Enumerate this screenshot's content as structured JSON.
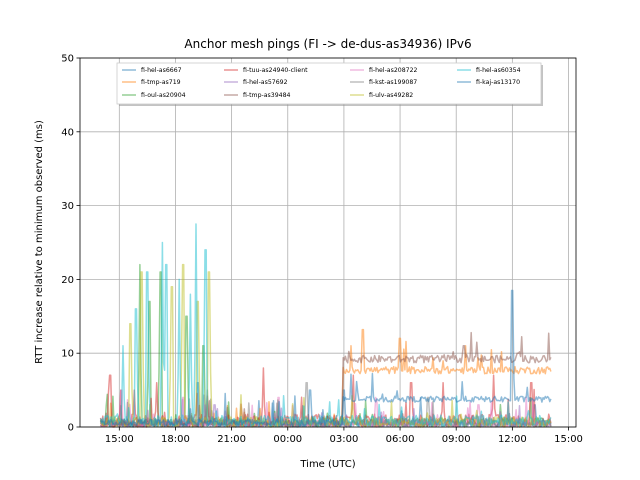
{
  "chart_data": {
    "type": "line",
    "title": "Anchor mesh pings (FI -> de-dus-as34936) IPv6",
    "xlabel": "Time (UTC)",
    "ylabel": "RTT increase relative to minimum observed (ms)",
    "ylim": [
      0,
      50
    ],
    "xlim_hours": [
      12.9,
      39.4
    ],
    "x_ticks": [
      {
        "label": "15:00",
        "hour": 15
      },
      {
        "label": "18:00",
        "hour": 18
      },
      {
        "label": "21:00",
        "hour": 21
      },
      {
        "label": "00:00",
        "hour": 24
      },
      {
        "label": "03:00",
        "hour": 27
      },
      {
        "label": "06:00",
        "hour": 30
      },
      {
        "label": "09:00",
        "hour": 33
      },
      {
        "label": "12:00",
        "hour": 36
      },
      {
        "label": "15:00",
        "hour": 39
      }
    ],
    "y_ticks": [
      0,
      10,
      20,
      30,
      40,
      50
    ],
    "grid": true,
    "legend_position": "top",
    "series": [
      {
        "name": "fi-hel-as6667",
        "color": "#1f77b4",
        "start": 14.0,
        "end": 38.1,
        "level": 0.3,
        "noise": 0.5,
        "spikes": [
          [
            19.2,
            6
          ],
          [
            27.0,
            5
          ],
          [
            31.1,
            4
          ],
          [
            37.2,
            3
          ]
        ]
      },
      {
        "name": "fi-tmp-as719",
        "color": "#ff7f0e",
        "start": 14.0,
        "end": 38.1,
        "level": 0.3,
        "noise": 0.4,
        "plateau": {
          "from": 26.95,
          "level": 7.5,
          "noise": 0.5
        },
        "spikes": [
          [
            28.0,
            13.2
          ],
          [
            30.0,
            12.0
          ],
          [
            33.5,
            11.0
          ]
        ]
      },
      {
        "name": "fi-oul-as20904",
        "color": "#2ca02c",
        "start": 14.0,
        "end": 38.1,
        "level": 0.4,
        "noise": 0.6,
        "spikes": [
          [
            16.1,
            22
          ],
          [
            16.6,
            17
          ],
          [
            17.2,
            21
          ],
          [
            18.6,
            15
          ],
          [
            19.5,
            11
          ]
        ]
      },
      {
        "name": "fi-tuu-as24940-client",
        "color": "#d62728",
        "start": 14.0,
        "end": 38.1,
        "level": 0.5,
        "noise": 0.9,
        "spikes": [
          [
            14.5,
            7
          ],
          [
            15.8,
            5
          ],
          [
            17.0,
            6
          ],
          [
            22.7,
            8
          ],
          [
            27.5,
            7
          ],
          [
            30.6,
            6
          ],
          [
            32.3,
            6
          ],
          [
            35.0,
            7
          ],
          [
            37.0,
            6
          ]
        ]
      },
      {
        "name": "fi-hel-as57692",
        "color": "#9467bd",
        "start": 14.0,
        "end": 38.1,
        "level": 0.2,
        "noise": 0.3,
        "spikes": [
          [
            20.1,
            3
          ],
          [
            29.0,
            2
          ]
        ]
      },
      {
        "name": "fi-tmp-as39484",
        "color": "#8c564b",
        "start": 14.0,
        "end": 38.1,
        "level": 0.3,
        "noise": 0.4,
        "plateau": {
          "from": 26.9,
          "level": 9.0,
          "noise": 0.5
        },
        "spikes": [
          [
            33.4,
            11
          ],
          [
            36.3,
            10
          ]
        ]
      },
      {
        "name": "fi-hel-as208722",
        "color": "#e377c2",
        "start": 14.0,
        "end": 38.1,
        "level": 0.3,
        "noise": 0.5,
        "spikes": [
          [
            15.1,
            5
          ],
          [
            18.4,
            4
          ],
          [
            23.5,
            4
          ],
          [
            28.7,
            4
          ],
          [
            34.2,
            3
          ]
        ]
      },
      {
        "name": "fi-kst-as199087",
        "color": "#7f7f7f",
        "start": 14.0,
        "end": 38.1,
        "level": 0.3,
        "noise": 0.5,
        "spikes": [
          [
            19.7,
            5
          ],
          [
            25.0,
            6
          ],
          [
            31.5,
            4
          ]
        ]
      },
      {
        "name": "fi-ulv-as49282",
        "color": "#bcbd22",
        "start": 14.0,
        "end": 38.1,
        "level": 0.4,
        "noise": 0.7,
        "spikes": [
          [
            15.6,
            14
          ],
          [
            16.2,
            21
          ],
          [
            17.8,
            19
          ],
          [
            18.4,
            22
          ],
          [
            19.2,
            17
          ],
          [
            19.8,
            21
          ]
        ]
      },
      {
        "name": "fi-hel-as60354",
        "color": "#17becf",
        "start": 14.0,
        "end": 38.1,
        "level": 0.5,
        "noise": 0.8,
        "spikes": [
          [
            15.2,
            11
          ],
          [
            15.9,
            16
          ],
          [
            16.5,
            21
          ],
          [
            17.3,
            25
          ],
          [
            17.5,
            22
          ],
          [
            18.2,
            20
          ],
          [
            18.8,
            18
          ],
          [
            19.1,
            27.5
          ],
          [
            19.6,
            24
          ]
        ]
      },
      {
        "name": "fi-kaj-as13170",
        "color": "#1f77b4",
        "start": 14.0,
        "end": 38.1,
        "level": 0.4,
        "noise": 0.5,
        "plateau": {
          "from": 26.95,
          "level": 3.6,
          "noise": 0.4
        },
        "spikes": [
          [
            25.2,
            5
          ],
          [
            36.0,
            18.5
          ]
        ]
      }
    ]
  }
}
